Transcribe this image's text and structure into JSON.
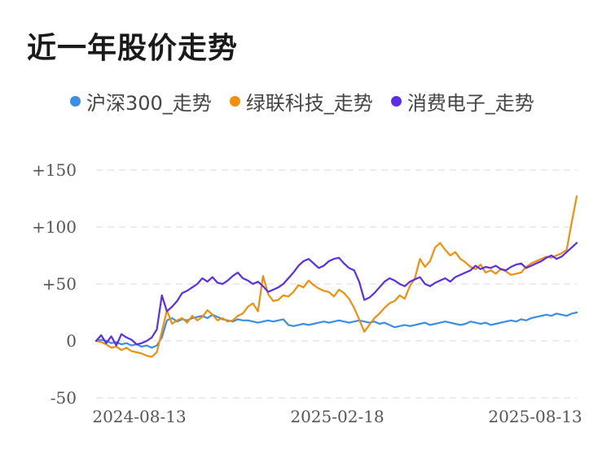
{
  "colors": {
    "background": "#ffffff",
    "grid": "#e6e6e6",
    "text": "#555555"
  },
  "chart_data": {
    "type": "line",
    "title": "近一年股价走势",
    "ylim": [
      -50,
      150
    ],
    "y_ticks": [
      "+150",
      "+100",
      "+50",
      "0",
      "-50"
    ],
    "y_tick_values": [
      150,
      100,
      50,
      0,
      -50
    ],
    "x_ticks": [
      "2024-08-13",
      "2025-02-18",
      "2025-08-13"
    ],
    "grid": true,
    "legend_position": "top",
    "series": [
      {
        "name": "沪深300_走势",
        "color": "#3a8ee6",
        "values": [
          0,
          1,
          0,
          -2,
          -1,
          -3,
          -2,
          -4,
          -3,
          -5,
          -4,
          -6,
          -4,
          3,
          18,
          20,
          17,
          19,
          18,
          20,
          21,
          22,
          20,
          23,
          21,
          19,
          18,
          17,
          19,
          18,
          18,
          17,
          16,
          17,
          18,
          17,
          18,
          19,
          14,
          13,
          14,
          15,
          14,
          15,
          16,
          17,
          16,
          17,
          18,
          17,
          16,
          17,
          18,
          17,
          16,
          17,
          15,
          16,
          14,
          12,
          13,
          14,
          13,
          14,
          15,
          16,
          14,
          15,
          16,
          17,
          16,
          15,
          14,
          15,
          17,
          16,
          15,
          16,
          14,
          15,
          16,
          17,
          18,
          17,
          19,
          18,
          20,
          21,
          22,
          23,
          22,
          24,
          23,
          22,
          24,
          25
        ]
      },
      {
        "name": "绿联科技_走势",
        "color": "#ef8f0c",
        "values": [
          0,
          -1,
          -3,
          -6,
          -5,
          -8,
          -6,
          -9,
          -10,
          -11,
          -13,
          -14,
          -10,
          8,
          27,
          15,
          18,
          20,
          16,
          22,
          18,
          21,
          27,
          23,
          18,
          20,
          17,
          18,
          22,
          24,
          30,
          33,
          26,
          57,
          41,
          35,
          36,
          40,
          39,
          43,
          49,
          47,
          53,
          49,
          46,
          44,
          43,
          39,
          45,
          42,
          37,
          29,
          19,
          8,
          14,
          20,
          24,
          29,
          33,
          35,
          40,
          37,
          48,
          55,
          72,
          65,
          70,
          82,
          86,
          80,
          75,
          78,
          72,
          69,
          65,
          63,
          67,
          60,
          62,
          59,
          63,
          61,
          58,
          59,
          60,
          65,
          68,
          70,
          72,
          74,
          73,
          75,
          77,
          80,
          104,
          127
        ]
      },
      {
        "name": "消费电子_走势",
        "color": "#5a2ee6",
        "values": [
          0,
          5,
          -2,
          4,
          -4,
          6,
          3,
          1,
          -3,
          -2,
          0,
          3,
          10,
          40,
          26,
          30,
          35,
          42,
          44,
          47,
          50,
          55,
          52,
          56,
          51,
          50,
          53,
          57,
          60,
          55,
          53,
          50,
          52,
          48,
          43,
          45,
          47,
          50,
          55,
          60,
          66,
          70,
          72,
          68,
          64,
          66,
          70,
          72,
          73,
          68,
          64,
          62,
          52,
          36,
          38,
          42,
          47,
          52,
          55,
          53,
          50,
          48,
          52,
          54,
          56,
          50,
          48,
          51,
          53,
          55,
          52,
          56,
          58,
          60,
          62,
          66,
          63,
          65,
          64,
          66,
          63,
          62,
          65,
          67,
          68,
          64,
          66,
          68,
          70,
          73,
          75,
          72,
          74,
          78,
          82,
          86
        ]
      }
    ]
  }
}
